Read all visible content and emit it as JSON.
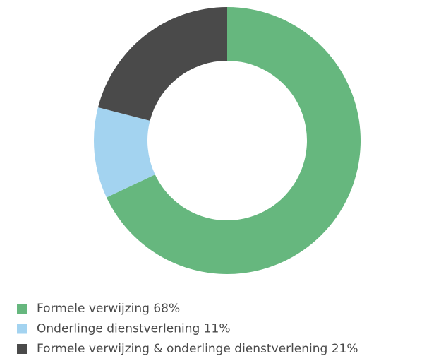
{
  "chart_data": {
    "type": "donut",
    "categories": [
      "Formele verwijzing",
      "Onderlinge dienstverlening",
      "Formele verwijzing & onderlinge dienstverlening"
    ],
    "values": [
      68,
      11,
      21
    ],
    "value_labels": [
      "68%",
      "11%",
      "21%"
    ],
    "colors": [
      "#66b77e",
      "#a3d3f0",
      "#4a4a4a"
    ]
  }
}
